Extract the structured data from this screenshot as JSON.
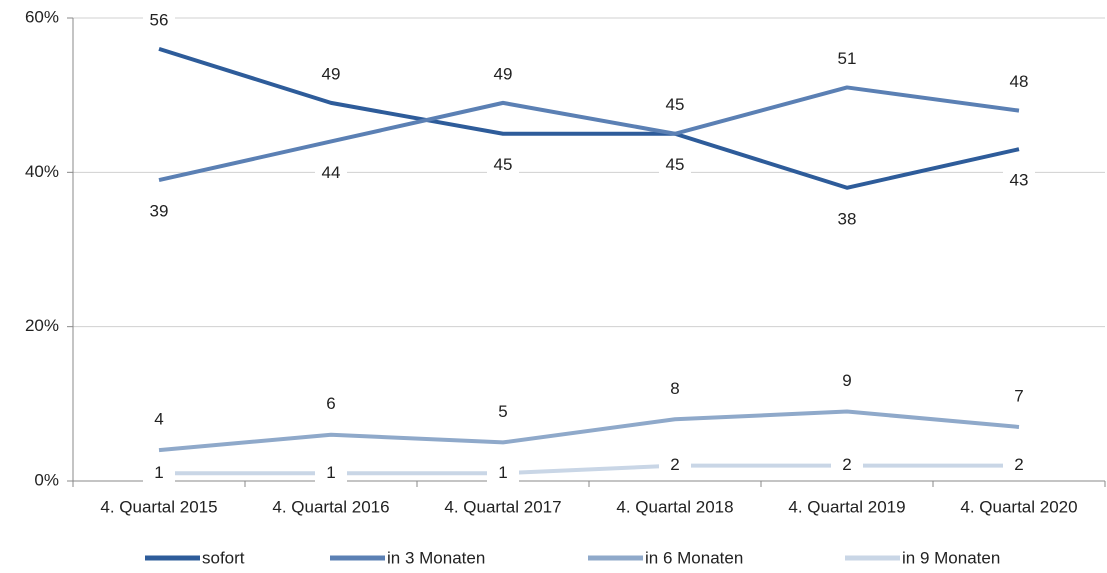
{
  "chart_data": {
    "type": "line",
    "categories": [
      "4. Quartal 2015",
      "4. Quartal 2016",
      "4. Quartal 2017",
      "4. Quartal 2018",
      "4. Quartal 2019",
      "4. Quartal 2020"
    ],
    "series": [
      {
        "name": "sofort",
        "color": "#2e5c9a",
        "values": [
          56,
          49,
          45,
          45,
          38,
          43
        ]
      },
      {
        "name": "in 3 Monaten",
        "color": "#5b80b4",
        "values": [
          39,
          44,
          49,
          45,
          51,
          48
        ]
      },
      {
        "name": "in 6 Monaten",
        "color": "#8fa9ca",
        "values": [
          4,
          6,
          5,
          8,
          9,
          7
        ]
      },
      {
        "name": "in 9 Monaten",
        "color": "#c9d6e6",
        "values": [
          1,
          1,
          1,
          2,
          2,
          2
        ]
      }
    ],
    "ylim": [
      0,
      60
    ],
    "yticks": [
      {
        "value": 0,
        "label": "0%"
      },
      {
        "value": 20,
        "label": "20%"
      },
      {
        "value": 40,
        "label": "40%"
      },
      {
        "value": 60,
        "label": "60%"
      }
    ],
    "grid": true,
    "legend": "bottom"
  }
}
